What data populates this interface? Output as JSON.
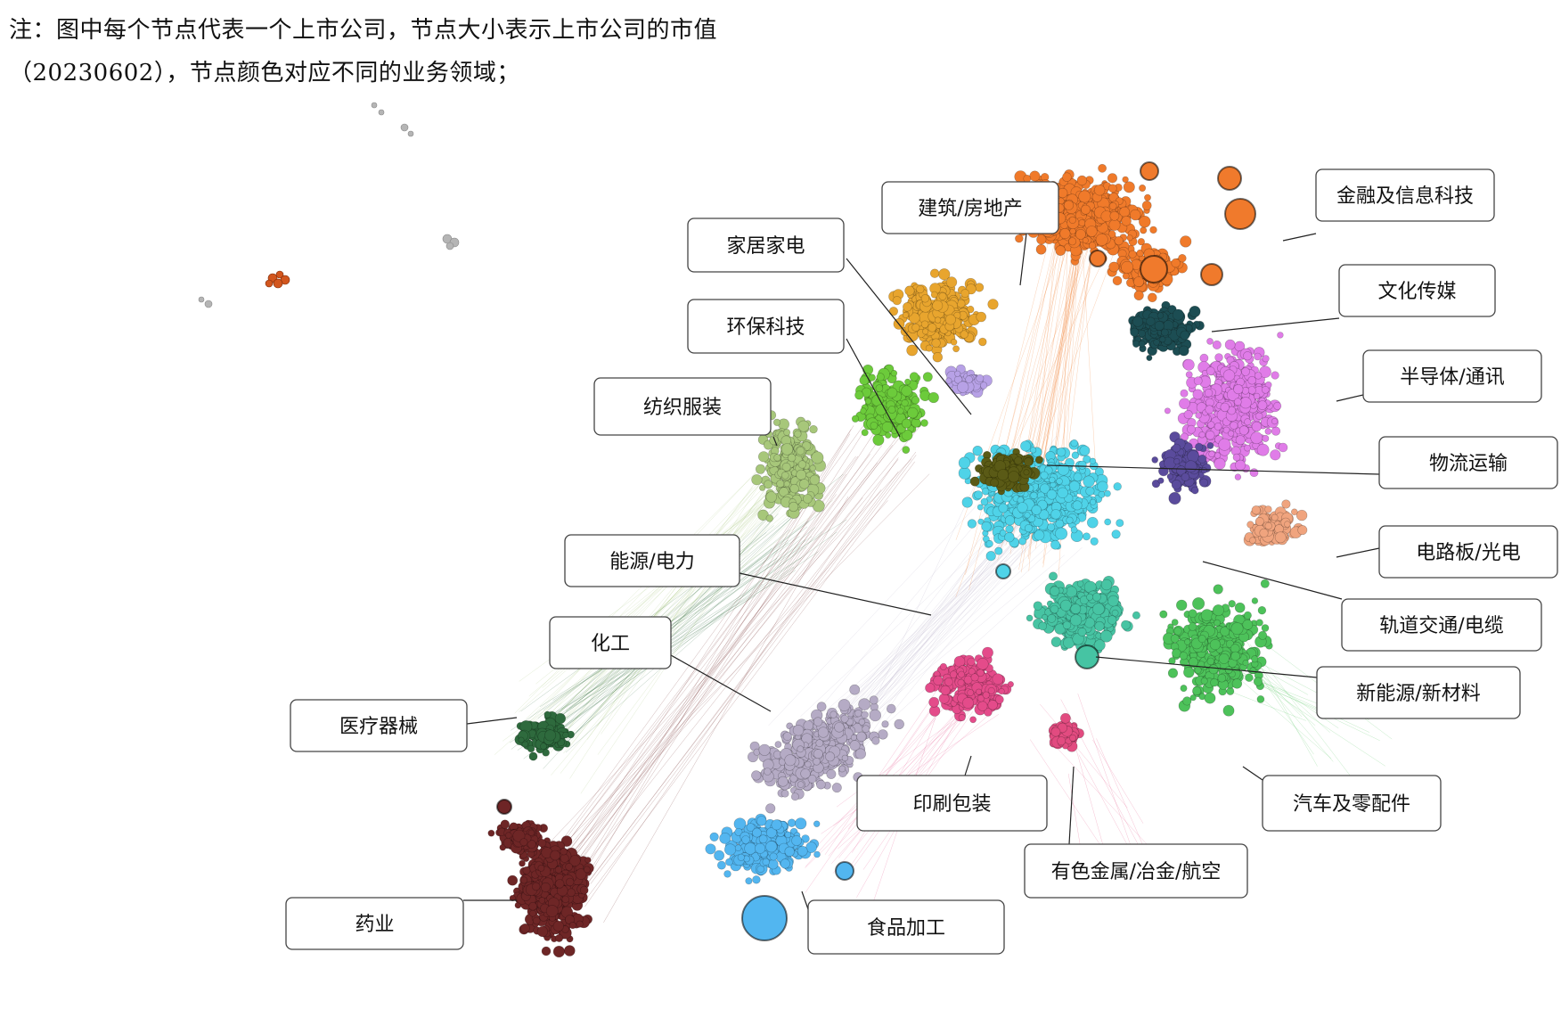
{
  "note": {
    "text": "注：图中每个节点代表一个上市公司，节点大小表示上市公司的市值（20230602），节点颜色对应不同的业务领域；"
  },
  "clusters": [
    {
      "label": "金融及信息科技",
      "color": "#F07A2C"
    },
    {
      "label": "文化传媒",
      "color": "#1E4E53"
    },
    {
      "label": "建筑/房地产",
      "color": "#E8A52E"
    },
    {
      "label": "家居家电",
      "color": "#B7A1E6"
    },
    {
      "label": "环保科技",
      "color": "#6CCB3A"
    },
    {
      "label": "纺织服装",
      "color": "#A7C77A"
    },
    {
      "label": "半导体/通讯",
      "color": "#E07BE8"
    },
    {
      "label": "物流运输",
      "color": "#5A5A12"
    },
    {
      "label": "电路板/光电",
      "color": "#F0A47E"
    },
    {
      "label": "轨道交通/电缆",
      "color": "#5A4C9C"
    },
    {
      "label": "能源/电力",
      "color": "#4FD3E8"
    },
    {
      "label": "新能源/新材料",
      "color": "#46C4A3"
    },
    {
      "label": "化工",
      "color": "#B5ABC5"
    },
    {
      "label": "医疗器械",
      "color": "#2D6A3C"
    },
    {
      "label": "汽车及零配件",
      "color": "#4DC25A"
    },
    {
      "label": "印刷包装",
      "color": "#E44C8A"
    },
    {
      "label": "有色金属/冶金/航空",
      "color": "#E24C80"
    },
    {
      "label": "药业",
      "color": "#6E2526"
    },
    {
      "label": "食品加工",
      "color": "#52B6F0"
    }
  ],
  "isolated_colors": {
    "gray": "#B5B5B5",
    "orange": "#D2561E"
  }
}
